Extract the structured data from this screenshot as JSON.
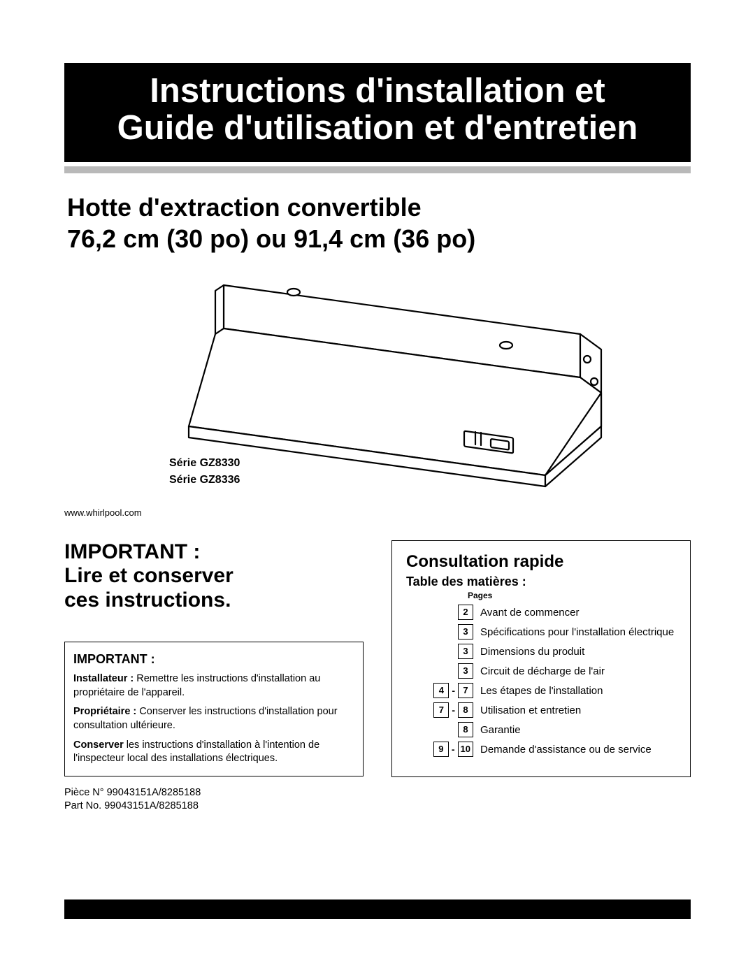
{
  "banner": {
    "line1": "Instructions d'installation et",
    "line2": "Guide d'utilisation et d'entretien"
  },
  "subheader": {
    "line1": "Hotte d'extraction convertible",
    "line2": "76,2 cm (30 po) ou 91,4 cm (36 po)"
  },
  "series": {
    "line1": "Série GZ8330",
    "line2": "Série GZ8336"
  },
  "url": "www.whirlpool.com",
  "important": {
    "heading_line1": "IMPORTANT :",
    "heading_line2": "Lire et conserver",
    "heading_line3": "ces instructions.",
    "box_title": "IMPORTANT :",
    "items": [
      {
        "lead": "Installateur : ",
        "text": "Remettre les instructions d'installation au propriétaire de l'appareil."
      },
      {
        "lead": "Propriétaire : ",
        "text": "Conserver les instructions d'installation pour consultation ultérieure."
      },
      {
        "lead": "Conserver ",
        "text": "les instructions d'installation à l'intention de l'inspecteur local des installations électriques."
      }
    ]
  },
  "part": {
    "line1": "Pièce N° 99043151A/8285188",
    "line2": "Part No. 99043151A/8285188"
  },
  "toc": {
    "title": "Consultation rapide",
    "subtitle": "Table des matières :",
    "pages_label": "Pages",
    "rows": [
      {
        "pages": [
          "2"
        ],
        "label": "Avant de commencer"
      },
      {
        "pages": [
          "3"
        ],
        "label": "Spécifications pour l'installation électrique"
      },
      {
        "pages": [
          "3"
        ],
        "label": "Dimensions du produit"
      },
      {
        "pages": [
          "3"
        ],
        "label": "Circuit de décharge de l'air"
      },
      {
        "pages": [
          "4",
          "7"
        ],
        "label": "Les étapes de l'installation"
      },
      {
        "pages": [
          "7",
          "8"
        ],
        "label": "Utilisation et entretien"
      },
      {
        "pages": [
          "8"
        ],
        "label": "Garantie"
      },
      {
        "pages": [
          "9",
          "10"
        ],
        "label": "Demande d'assistance ou de service"
      }
    ]
  },
  "illustration": {
    "stroke": "#000",
    "stroke_width": 2.2,
    "fill": "#fff"
  }
}
